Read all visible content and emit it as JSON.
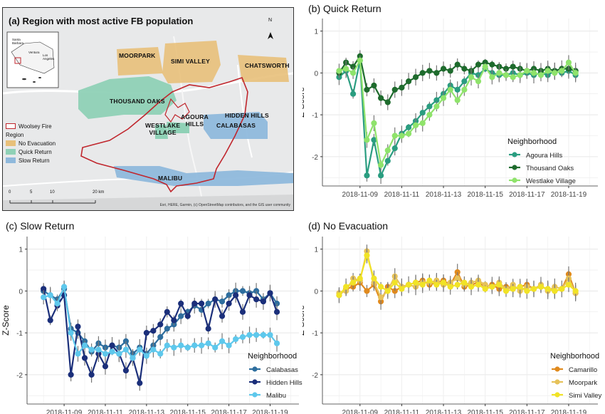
{
  "map": {
    "title": "(a) Region with most active FB population",
    "north": "N",
    "legend": {
      "fire": "Woolsey Fire",
      "heading": "Region",
      "items": [
        {
          "label": "No Evacuation",
          "color": "#e8c07a"
        },
        {
          "label": "Quick Return",
          "color": "#8fd1b6"
        },
        {
          "label": "Slow Return",
          "color": "#8fb9dc"
        }
      ]
    },
    "places": {
      "moorpark": "MOORPARK",
      "simi": "SIMI VALLEY",
      "chatsworth": "CHATSWORTH",
      "thousand": "THOUSAND OAKS",
      "agoura": "AGOURA\nHILLS",
      "westlake": "WESTLAKE\nVILLAGE",
      "hidden": "HIDDEN HILLS",
      "calabasas": "CALABASAS",
      "malibu": "MALIBU"
    },
    "scale": {
      "ticks": [
        "0",
        "5",
        "10",
        "20 km"
      ]
    },
    "attribution": "Esri, HERE, Garmin, (c) OpenStreetMap contributors, and the GIS user community",
    "inset": {
      "labels": [
        "Santa\nBarbara",
        "Ventura",
        "Los\nAngeles"
      ]
    }
  },
  "chart_data": [
    {
      "type": "line",
      "title": "(b) Quick Return",
      "ylabel": "Z-Score",
      "ylim": [
        -2.7,
        1.3
      ],
      "yticks": [
        -2,
        -1,
        0,
        1
      ],
      "xlim": [
        -1.8,
        11.4
      ],
      "xticks": [
        0,
        2,
        4,
        6,
        8,
        10
      ],
      "xtick_labels": [
        "2018-11-09",
        "2018-11-11",
        "2018-11-13",
        "2018-11-15",
        "2018-11-17",
        "2018-11-19"
      ],
      "x": [
        -1.0,
        -0.67,
        -0.33,
        0.0,
        0.33,
        0.67,
        1.0,
        1.33,
        1.67,
        2.0,
        2.33,
        2.67,
        3.0,
        3.33,
        3.67,
        4.0,
        4.33,
        4.67,
        5.0,
        5.33,
        5.67,
        6.0,
        6.33,
        6.67,
        7.0,
        7.33,
        7.67,
        8.0,
        8.33,
        8.67,
        9.0,
        9.33,
        9.67,
        10.0,
        10.33
      ],
      "legend_title": "Neighborhood",
      "series": [
        {
          "name": "Agoura Hills",
          "color": "#2a9d80",
          "values": [
            -0.1,
            0.05,
            -0.5,
            0.3,
            -2.45,
            -1.6,
            -2.45,
            -2.1,
            -1.8,
            -1.45,
            -1.3,
            -1.15,
            -0.95,
            -0.8,
            -0.65,
            -0.5,
            -0.3,
            -0.4,
            -0.2,
            0.0,
            -0.05,
            0.1,
            0.0,
            -0.05,
            -0.05,
            0.0,
            -0.05,
            0.0,
            -0.05,
            0.0,
            -0.05,
            0.05,
            0.0,
            0.05,
            -0.05
          ]
        },
        {
          "name": "Thousand Oaks",
          "color": "#1e6b2d",
          "values": [
            0.0,
            0.25,
            0.15,
            0.4,
            -0.4,
            -0.3,
            -0.6,
            -0.7,
            -0.4,
            -0.35,
            -0.2,
            -0.1,
            0.0,
            0.05,
            0.0,
            0.1,
            0.05,
            0.2,
            0.1,
            0.05,
            0.2,
            0.25,
            0.2,
            0.15,
            0.1,
            0.15,
            0.1,
            0.05,
            0.1,
            0.05,
            0.1,
            0.05,
            0.1,
            0.1,
            0.05
          ]
        },
        {
          "name": "Westlake Village",
          "color": "#8fe36b",
          "values": [
            0.05,
            0.1,
            0.0,
            0.3,
            -1.6,
            -1.2,
            -2.2,
            -1.85,
            -1.5,
            -1.5,
            -1.45,
            -1.25,
            -1.2,
            -1.0,
            -0.8,
            -0.6,
            -0.4,
            -0.65,
            -0.4,
            -0.1,
            -0.2,
            0.15,
            -0.1,
            0.0,
            -0.05,
            -0.1,
            -0.05,
            0.05,
            0.0,
            -0.05,
            0.05,
            0.0,
            0.05,
            0.25,
            0.0
          ]
        }
      ]
    },
    {
      "type": "line",
      "title": "(c) Slow Return",
      "ylabel": "Z-Score",
      "ylim": [
        -2.7,
        1.3
      ],
      "yticks": [
        -2,
        -1,
        0,
        1
      ],
      "xlim": [
        -1.8,
        11.4
      ],
      "xticks": [
        0,
        2,
        4,
        6,
        8,
        10
      ],
      "xtick_labels": [
        "2018-11-09",
        "2018-11-11",
        "2018-11-13",
        "2018-11-15",
        "2018-11-17",
        "2018-11-19"
      ],
      "x": [
        -1.0,
        -0.67,
        -0.33,
        0.0,
        0.33,
        0.67,
        1.0,
        1.33,
        1.67,
        2.0,
        2.33,
        2.67,
        3.0,
        3.33,
        3.67,
        4.0,
        4.33,
        4.67,
        5.0,
        5.33,
        5.67,
        6.0,
        6.33,
        6.67,
        7.0,
        7.33,
        7.67,
        8.0,
        8.33,
        8.67,
        9.0,
        9.33,
        9.67,
        10.0,
        10.33
      ],
      "legend_title": "Neighborhood",
      "series": [
        {
          "name": "Calabasas",
          "color": "#2e6e9e",
          "values": [
            0.0,
            -0.1,
            -0.2,
            0.05,
            -0.9,
            -1.0,
            -1.2,
            -1.45,
            -1.25,
            -1.35,
            -1.3,
            -1.35,
            -1.2,
            -1.5,
            -1.35,
            -1.5,
            -1.3,
            -1.1,
            -0.9,
            -0.8,
            -0.6,
            -0.5,
            -0.35,
            -0.45,
            -0.3,
            -0.2,
            -0.25,
            -0.1,
            0.0,
            0.0,
            -0.05,
            0.0,
            -0.2,
            -0.05,
            -0.3
          ]
        },
        {
          "name": "Hidden Hills",
          "color": "#1b2f7a",
          "values": [
            0.05,
            -0.7,
            -0.35,
            -0.1,
            -2.0,
            -0.85,
            -1.6,
            -2.0,
            -1.5,
            -1.8,
            -1.3,
            -1.5,
            -1.9,
            -1.6,
            -2.2,
            -1.0,
            -0.95,
            -0.8,
            -0.5,
            -0.7,
            -0.3,
            -0.6,
            -0.3,
            -0.3,
            -0.9,
            -0.2,
            -0.6,
            -0.3,
            -0.1,
            -0.5,
            -0.1,
            -0.2,
            -0.25,
            -0.05,
            -0.5
          ]
        },
        {
          "name": "Malibu",
          "color": "#5ec8ec",
          "values": [
            -0.15,
            -0.1,
            -0.3,
            0.1,
            -1.0,
            -1.5,
            -1.3,
            -1.4,
            -1.4,
            -1.5,
            -1.45,
            -1.5,
            -1.4,
            -1.6,
            -1.4,
            -1.55,
            -1.4,
            -1.5,
            -1.3,
            -1.35,
            -1.3,
            -1.35,
            -1.3,
            -1.3,
            -1.25,
            -1.35,
            -1.2,
            -1.3,
            -1.15,
            -1.1,
            -1.05,
            -1.05,
            -1.05,
            -1.05,
            -1.25
          ]
        }
      ]
    },
    {
      "type": "line",
      "title": "(d) No Evacuation",
      "ylabel": "Z-Score",
      "ylim": [
        -2.7,
        1.3
      ],
      "yticks": [
        -2,
        -1,
        0,
        1
      ],
      "xlim": [
        -1.8,
        11.4
      ],
      "xticks": [
        0,
        2,
        4,
        6,
        8,
        10
      ],
      "xtick_labels": [
        "2018-11-09",
        "2018-11-11",
        "2018-11-13",
        "2018-11-15",
        "2018-11-17",
        "2018-11-19"
      ],
      "x": [
        -1.0,
        -0.67,
        -0.33,
        0.0,
        0.33,
        0.67,
        1.0,
        1.33,
        1.67,
        2.0,
        2.33,
        2.67,
        3.0,
        3.33,
        3.67,
        4.0,
        4.33,
        4.67,
        5.0,
        5.33,
        5.67,
        6.0,
        6.33,
        6.67,
        7.0,
        7.33,
        7.67,
        8.0,
        8.33,
        8.67,
        9.0,
        9.33,
        9.67,
        10.0,
        10.33
      ],
      "legend_title": "Neighborhood",
      "series": [
        {
          "name": "Camarillo",
          "color": "#e08a1e",
          "values": [
            -0.1,
            0.05,
            0.1,
            0.2,
            0.0,
            0.15,
            -0.25,
            0.1,
            0.0,
            0.1,
            0.15,
            0.2,
            0.25,
            0.15,
            0.2,
            0.25,
            0.15,
            0.45,
            0.1,
            0.15,
            0.2,
            0.1,
            0.15,
            0.05,
            0.1,
            0.05,
            0.1,
            0.15,
            0.05,
            0.1,
            0.05,
            0.0,
            0.05,
            0.4,
            -0.05
          ]
        },
        {
          "name": "Moorpark",
          "color": "#e6c25a",
          "values": [
            -0.05,
            0.0,
            0.3,
            0.25,
            0.95,
            0.2,
            -0.15,
            0.0,
            0.35,
            0.1,
            0.15,
            0.1,
            0.2,
            0.2,
            0.25,
            0.15,
            0.2,
            0.3,
            0.15,
            0.2,
            0.25,
            0.15,
            0.1,
            0.2,
            0.05,
            0.15,
            0.0,
            0.1,
            0.05,
            0.15,
            0.0,
            0.1,
            0.05,
            0.3,
            -0.05
          ]
        },
        {
          "name": "Simi Valley",
          "color": "#f1e326",
          "values": [
            -0.1,
            0.1,
            0.2,
            0.3,
            0.85,
            0.3,
            0.1,
            0.0,
            0.2,
            0.05,
            0.15,
            0.2,
            0.15,
            0.25,
            0.15,
            0.2,
            0.1,
            0.15,
            0.2,
            0.1,
            0.15,
            0.05,
            0.1,
            0.15,
            0.0,
            0.05,
            0.1,
            0.0,
            0.05,
            0.1,
            0.05,
            0.0,
            0.05,
            0.15,
            0.0
          ]
        }
      ]
    }
  ]
}
